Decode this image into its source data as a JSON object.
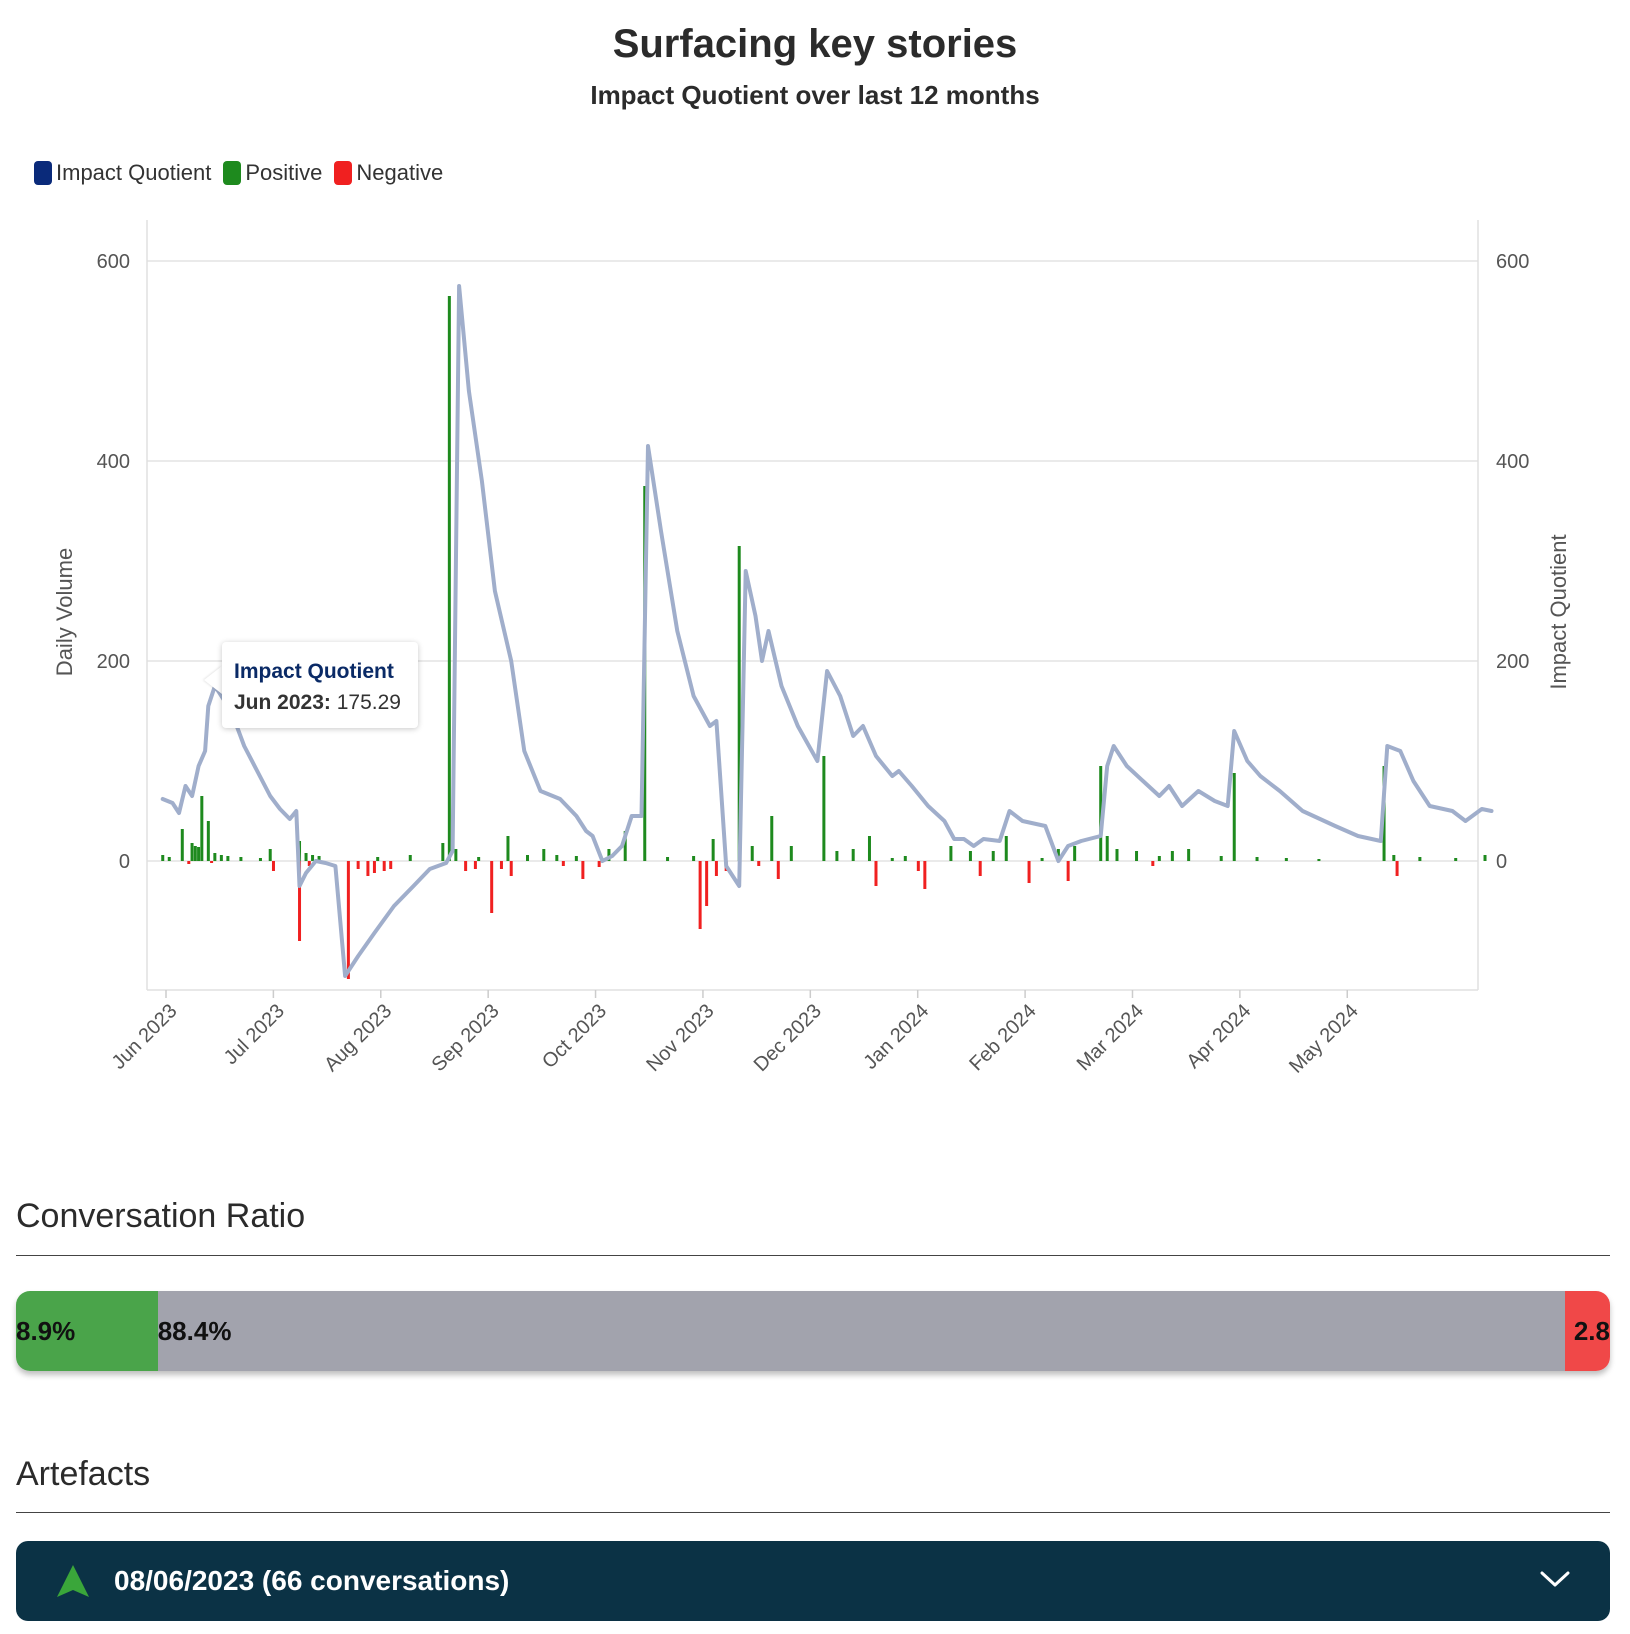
{
  "chart": {
    "title": "Surfacing key stories",
    "subtitle": "Impact Quotient over last 12 months"
  },
  "legend": {
    "items": [
      {
        "label": "Impact Quotient",
        "color": "#0a2a7a"
      },
      {
        "label": "Positive",
        "color": "#1e8a1e"
      },
      {
        "label": "Negative",
        "color": "#f02020"
      }
    ]
  },
  "tooltip": {
    "title": "Impact Quotient",
    "date": "Jun 2023:",
    "value": "175.29"
  },
  "chart_data": {
    "type": "line",
    "xlabel": "",
    "ylabel_left": "Daily Volume",
    "ylabel_right": "Impact Quotient",
    "ylim_left": [
      -130,
      600
    ],
    "ylim_right": [
      -130,
      600
    ],
    "x_ticks": [
      "Jun 2023",
      "Jul 2023",
      "Aug 2023",
      "Sep 2023",
      "Oct 2023",
      "Nov 2023",
      "Dec 2023",
      "Jan 2024",
      "Feb 2024",
      "Mar 2024",
      "Apr 2024",
      "May 2024"
    ],
    "y_ticks": [
      "0",
      "200",
      "400",
      "600"
    ],
    "grid": true,
    "legend_position": "top-left",
    "series": [
      {
        "name": "Impact Quotient",
        "axis": "right",
        "color": "#a0aecb",
        "points": [
          [
            "2023-05-31",
            62
          ],
          [
            "2023-06-03",
            58
          ],
          [
            "2023-06-05",
            48
          ],
          [
            "2023-06-07",
            75
          ],
          [
            "2023-06-09",
            65
          ],
          [
            "2023-06-11",
            95
          ],
          [
            "2023-06-13",
            110
          ],
          [
            "2023-06-14",
            155
          ],
          [
            "2023-06-16",
            175
          ],
          [
            "2023-06-18",
            165
          ],
          [
            "2023-06-21",
            150
          ],
          [
            "2023-06-25",
            115
          ],
          [
            "2023-06-29",
            90
          ],
          [
            "2023-07-03",
            65
          ],
          [
            "2023-07-06",
            52
          ],
          [
            "2023-07-09",
            42
          ],
          [
            "2023-07-11",
            50
          ],
          [
            "2023-07-12",
            -25
          ],
          [
            "2023-07-14",
            -12
          ],
          [
            "2023-07-17",
            0
          ],
          [
            "2023-07-20",
            -2
          ],
          [
            "2023-07-23",
            -5
          ],
          [
            "2023-07-26",
            -115
          ],
          [
            "2023-07-30",
            -95
          ],
          [
            "2023-08-04",
            -72
          ],
          [
            "2023-08-10",
            -45
          ],
          [
            "2023-08-16",
            -25
          ],
          [
            "2023-08-21",
            -8
          ],
          [
            "2023-08-26",
            -2
          ],
          [
            "2023-08-28",
            10
          ],
          [
            "2023-08-30",
            575
          ],
          [
            "2023-09-02",
            470
          ],
          [
            "2023-09-06",
            380
          ],
          [
            "2023-09-10",
            270
          ],
          [
            "2023-09-15",
            200
          ],
          [
            "2023-09-19",
            110
          ],
          [
            "2023-09-24",
            70
          ],
          [
            "2023-09-30",
            62
          ],
          [
            "2023-10-05",
            45
          ],
          [
            "2023-10-08",
            30
          ],
          [
            "2023-10-10",
            25
          ],
          [
            "2023-10-13",
            0
          ],
          [
            "2023-10-16",
            5
          ],
          [
            "2023-10-19",
            15
          ],
          [
            "2023-10-22",
            45
          ],
          [
            "2023-10-25",
            45
          ],
          [
            "2023-10-27",
            415
          ],
          [
            "2023-10-31",
            330
          ],
          [
            "2023-11-05",
            230
          ],
          [
            "2023-11-10",
            165
          ],
          [
            "2023-11-15",
            135
          ],
          [
            "2023-11-17",
            140
          ],
          [
            "2023-11-20",
            -5
          ],
          [
            "2023-11-24",
            -25
          ],
          [
            "2023-11-26",
            290
          ],
          [
            "2023-11-29",
            245
          ],
          [
            "2023-12-01",
            200
          ],
          [
            "2023-12-03",
            230
          ],
          [
            "2023-12-07",
            175
          ],
          [
            "2023-12-12",
            135
          ],
          [
            "2023-12-18",
            100
          ],
          [
            "2023-12-21",
            190
          ],
          [
            "2023-12-25",
            165
          ],
          [
            "2023-12-29",
            125
          ],
          [
            "2024-01-01",
            135
          ],
          [
            "2024-01-05",
            105
          ],
          [
            "2024-01-10",
            85
          ],
          [
            "2024-01-12",
            90
          ],
          [
            "2024-01-16",
            75
          ],
          [
            "2024-01-21",
            55
          ],
          [
            "2024-01-26",
            40
          ],
          [
            "2024-01-29",
            22
          ],
          [
            "2024-02-01",
            22
          ],
          [
            "2024-02-04",
            15
          ],
          [
            "2024-02-07",
            22
          ],
          [
            "2024-02-12",
            20
          ],
          [
            "2024-02-15",
            50
          ],
          [
            "2024-02-19",
            40
          ],
          [
            "2024-02-26",
            35
          ],
          [
            "2024-03-01",
            0
          ],
          [
            "2024-03-04",
            15
          ],
          [
            "2024-03-08",
            20
          ],
          [
            "2024-03-14",
            25
          ],
          [
            "2024-03-16",
            95
          ],
          [
            "2024-03-18",
            115
          ],
          [
            "2024-03-22",
            95
          ],
          [
            "2024-03-27",
            80
          ],
          [
            "2024-04-01",
            65
          ],
          [
            "2024-04-04",
            75
          ],
          [
            "2024-04-08",
            55
          ],
          [
            "2024-04-13",
            70
          ],
          [
            "2024-04-18",
            60
          ],
          [
            "2024-04-22",
            55
          ],
          [
            "2024-04-24",
            130
          ],
          [
            "2024-04-28",
            100
          ],
          [
            "2024-05-02",
            85
          ],
          [
            "2024-05-08",
            70
          ],
          [
            "2024-05-15",
            50
          ],
          [
            "2024-05-25",
            35
          ],
          [
            "2024-06-01",
            25
          ],
          [
            "2024-06-08",
            20
          ],
          [
            "2024-06-10",
            115
          ],
          [
            "2024-06-14",
            110
          ],
          [
            "2024-06-18",
            80
          ],
          [
            "2024-06-23",
            55
          ],
          [
            "2024-06-30",
            50
          ],
          [
            "2024-07-04",
            40
          ],
          [
            "2024-07-09",
            52
          ],
          [
            "2024-07-12",
            50
          ]
        ]
      },
      {
        "name": "Positive",
        "axis": "left",
        "color": "#1e8a1e",
        "points": [
          [
            "2023-05-31",
            6
          ],
          [
            "2023-06-02",
            4
          ],
          [
            "2023-06-06",
            32
          ],
          [
            "2023-06-09",
            18
          ],
          [
            "2023-06-10",
            15
          ],
          [
            "2023-06-11",
            14
          ],
          [
            "2023-06-12",
            65
          ],
          [
            "2023-06-14",
            40
          ],
          [
            "2023-06-16",
            8
          ],
          [
            "2023-06-18",
            6
          ],
          [
            "2023-06-20",
            5
          ],
          [
            "2023-06-24",
            4
          ],
          [
            "2023-06-30",
            3
          ],
          [
            "2023-07-03",
            12
          ],
          [
            "2023-07-12",
            20
          ],
          [
            "2023-07-14",
            8
          ],
          [
            "2023-07-16",
            6
          ],
          [
            "2023-07-18",
            5
          ],
          [
            "2023-08-05",
            4
          ],
          [
            "2023-08-15",
            6
          ],
          [
            "2023-08-25",
            18
          ],
          [
            "2023-08-27",
            565
          ],
          [
            "2023-08-29",
            12
          ],
          [
            "2023-09-05",
            4
          ],
          [
            "2023-09-14",
            25
          ],
          [
            "2023-09-20",
            6
          ],
          [
            "2023-09-25",
            12
          ],
          [
            "2023-09-29",
            6
          ],
          [
            "2023-10-05",
            5
          ],
          [
            "2023-10-15",
            12
          ],
          [
            "2023-10-20",
            30
          ],
          [
            "2023-10-26",
            375
          ],
          [
            "2023-11-02",
            4
          ],
          [
            "2023-11-10",
            5
          ],
          [
            "2023-11-16",
            22
          ],
          [
            "2023-11-24",
            315
          ],
          [
            "2023-11-28",
            15
          ],
          [
            "2023-12-04",
            45
          ],
          [
            "2023-12-10",
            15
          ],
          [
            "2023-12-20",
            105
          ],
          [
            "2023-12-24",
            10
          ],
          [
            "2023-12-29",
            12
          ],
          [
            "2024-01-03",
            25
          ],
          [
            "2024-01-10",
            3
          ],
          [
            "2024-01-14",
            5
          ],
          [
            "2024-01-28",
            15
          ],
          [
            "2024-02-03",
            10
          ],
          [
            "2024-02-10",
            10
          ],
          [
            "2024-02-14",
            25
          ],
          [
            "2024-02-25",
            3
          ],
          [
            "2024-03-01",
            12
          ],
          [
            "2024-03-06",
            15
          ],
          [
            "2024-03-14",
            95
          ],
          [
            "2024-03-16",
            25
          ],
          [
            "2024-03-19",
            12
          ],
          [
            "2024-03-25",
            10
          ],
          [
            "2024-04-01",
            5
          ],
          [
            "2024-04-05",
            10
          ],
          [
            "2024-04-10",
            12
          ],
          [
            "2024-04-20",
            5
          ],
          [
            "2024-04-24",
            88
          ],
          [
            "2024-05-01",
            4
          ],
          [
            "2024-05-10",
            3
          ],
          [
            "2024-05-20",
            2
          ],
          [
            "2024-06-09",
            95
          ],
          [
            "2024-06-12",
            6
          ],
          [
            "2024-06-20",
            4
          ],
          [
            "2024-07-01",
            3
          ],
          [
            "2024-07-10",
            6
          ]
        ]
      },
      {
        "name": "Negative",
        "axis": "left",
        "color": "#f02020",
        "points": [
          [
            "2023-06-08",
            -3
          ],
          [
            "2023-06-15",
            -2
          ],
          [
            "2023-07-04",
            -10
          ],
          [
            "2023-07-12",
            -80
          ],
          [
            "2023-07-15",
            -5
          ],
          [
            "2023-07-27",
            -118
          ],
          [
            "2023-07-30",
            -8
          ],
          [
            "2023-08-02",
            -15
          ],
          [
            "2023-08-04",
            -12
          ],
          [
            "2023-08-07",
            -10
          ],
          [
            "2023-08-09",
            -8
          ],
          [
            "2023-09-01",
            -10
          ],
          [
            "2023-09-04",
            -8
          ],
          [
            "2023-09-09",
            -52
          ],
          [
            "2023-09-12",
            -8
          ],
          [
            "2023-09-15",
            -15
          ],
          [
            "2023-10-01",
            -5
          ],
          [
            "2023-10-07",
            -18
          ],
          [
            "2023-10-12",
            -6
          ],
          [
            "2023-11-12",
            -68
          ],
          [
            "2023-11-14",
            -45
          ],
          [
            "2023-11-17",
            -15
          ],
          [
            "2023-11-20",
            -10
          ],
          [
            "2023-11-30",
            -5
          ],
          [
            "2023-12-06",
            -18
          ],
          [
            "2024-01-05",
            -25
          ],
          [
            "2024-01-18",
            -10
          ],
          [
            "2024-01-20",
            -28
          ],
          [
            "2024-02-06",
            -15
          ],
          [
            "2024-02-21",
            -22
          ],
          [
            "2024-03-04",
            -20
          ],
          [
            "2024-03-30",
            -5
          ],
          [
            "2024-06-13",
            -15
          ]
        ]
      }
    ]
  },
  "ratio": {
    "title": "Conversation Ratio",
    "segments": [
      {
        "label": "8.9%",
        "value": 8.9,
        "color": "#4aa44a"
      },
      {
        "label": "88.4%",
        "value": 88.4,
        "color": "#a2a3ad"
      },
      {
        "label": "2.8",
        "value": 2.8,
        "color": "#f04848"
      }
    ]
  },
  "artefacts": {
    "title": "Artefacts",
    "rows": [
      {
        "label": "08/06/2023 (66 conversations)",
        "icon": "up-triangle-icon",
        "icon_color": "#3aa63a"
      }
    ]
  }
}
